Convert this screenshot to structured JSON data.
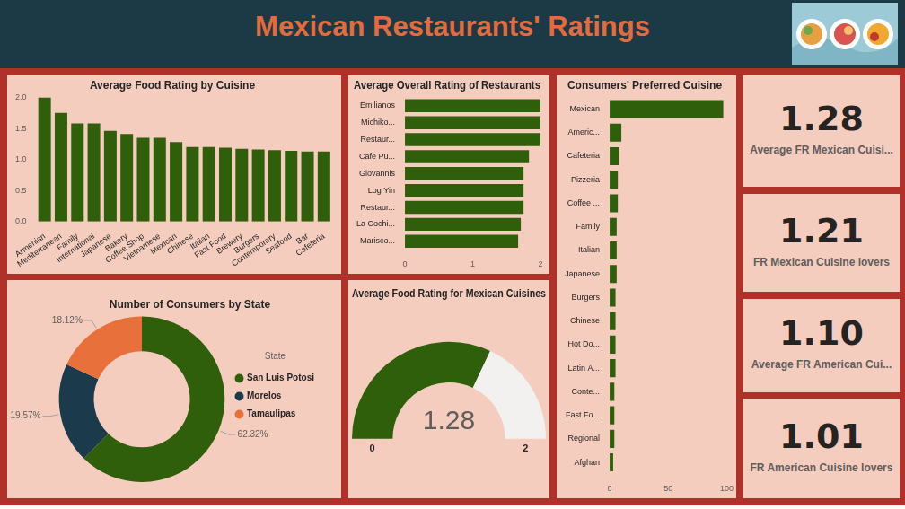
{
  "header": {
    "title": "Mexican Restaurants' Ratings"
  },
  "chart_data": [
    {
      "type": "bar",
      "title": "Average Food Rating by Cuisine",
      "categories": [
        "Armenian",
        "Mediterranean",
        "Family",
        "International",
        "Japanese",
        "Bakery",
        "Coffee Shop",
        "Vietnamese",
        "Mexican",
        "Chinese",
        "Italian",
        "Fast Food",
        "Brewery",
        "Burgers",
        "Contemporary",
        "Seafood",
        "Bar",
        "Cafeteria"
      ],
      "values": [
        2.0,
        1.75,
        1.58,
        1.58,
        1.46,
        1.41,
        1.35,
        1.35,
        1.28,
        1.2,
        1.2,
        1.19,
        1.17,
        1.16,
        1.15,
        1.14,
        1.13,
        1.13
      ],
      "color": "#2f5f0a",
      "ylim": [
        0,
        2
      ],
      "yticks": [
        {
          "value": 0,
          "label": "0.0"
        },
        {
          "value": 0.5,
          "label": "0.5"
        },
        {
          "value": 1,
          "label": "1.0"
        },
        {
          "value": 1.5,
          "label": "1.5"
        },
        {
          "value": 2,
          "label": "2.0"
        }
      ],
      "grid": false
    },
    {
      "type": "bar",
      "orientation": "horizontal",
      "title": "Average Overall Rating of Restaurants",
      "categories": [
        "Emilianos",
        "Michiko...",
        "Restaur...",
        "Cafe Pu...",
        "Giovannis",
        "Log Yin",
        "Restaur...",
        "La Cochi...",
        "Marisco..."
      ],
      "values": [
        2.0,
        2.0,
        2.0,
        1.83,
        1.75,
        1.75,
        1.75,
        1.71,
        1.67
      ],
      "color": "#2f5f0a",
      "xlim": [
        0,
        2
      ],
      "xticks": [
        0,
        1,
        2
      ],
      "grid": false
    },
    {
      "type": "bar",
      "orientation": "horizontal",
      "title": "Consumers' Preferred Cuisine",
      "categories": [
        "Mexican",
        "Americ...",
        "Cafeteria",
        "Pizzeria",
        "Coffee ...",
        "Family",
        "Italian",
        "Japanese",
        "Burgers",
        "Chinese",
        "Hot Do...",
        "Latin A...",
        "Conte...",
        "Fast Fo...",
        "Regional",
        "Afghan"
      ],
      "values": [
        97,
        10,
        8,
        7,
        7,
        6,
        6,
        6,
        5,
        5,
        5,
        5,
        4,
        4,
        4,
        3
      ],
      "color": "#2f5f0a",
      "xlim": [
        0,
        100
      ],
      "xticks": [
        0,
        50,
        100
      ],
      "grid": false
    },
    {
      "type": "doughnut",
      "title": "Number of Consumers by State",
      "categories": [
        "San Luis Potosi",
        "Morelos",
        "Tamaulipas"
      ],
      "values": [
        62.32,
        19.57,
        18.12
      ],
      "value_labels": [
        "62.32%",
        "19.57%",
        "18.12%"
      ],
      "colors": [
        "#2f5f0a",
        "#1b3a4b",
        "#e8703a"
      ],
      "legend": "right",
      "legend_title": "State",
      "data_labels": true
    },
    {
      "type": "gauge",
      "title": "Average Food Rating for Mexican Cuisines",
      "value": 1.28,
      "ylim": [
        0,
        2
      ],
      "colors": [
        "#2f5f0a",
        "#f2f1f0"
      ]
    }
  ],
  "cards": [
    {
      "value": "1.28",
      "label": "Average FR Mexican Cuisi..."
    },
    {
      "value": "1.21",
      "label": "FR Mexican Cuisine lovers"
    },
    {
      "value": "1.10",
      "label": "Average FR American Cui..."
    },
    {
      "value": "1.01",
      "label": "FR American Cuisine lovers"
    }
  ]
}
